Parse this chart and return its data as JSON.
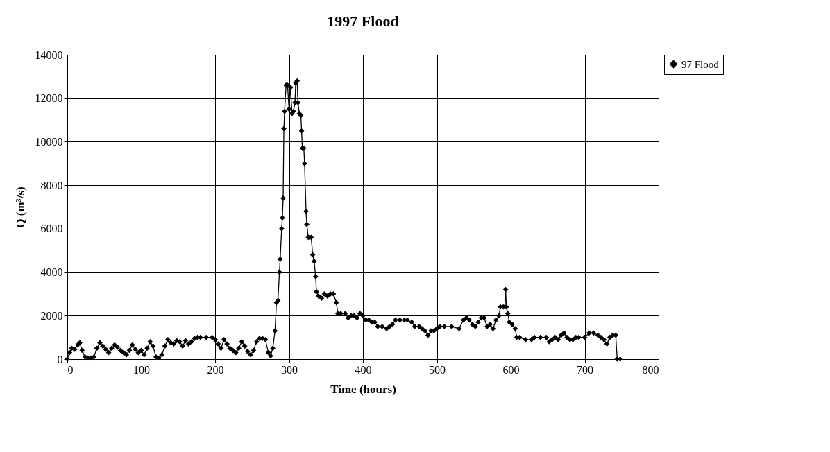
{
  "chart_data": {
    "type": "line",
    "title": "1997 Flood",
    "xlabel": "Time (hours)",
    "ylabel": "Q (m³/s)",
    "xlim": [
      0,
      800
    ],
    "xticks": [
      0,
      100,
      200,
      300,
      400,
      500,
      600,
      700,
      800
    ],
    "ylim": [
      0,
      14000
    ],
    "yticks": [
      0,
      2000,
      4000,
      6000,
      8000,
      10000,
      12000,
      14000
    ],
    "grid": true,
    "legend": "right",
    "marker": "diamond",
    "line_style": "solid",
    "x": [
      0,
      3,
      6,
      10,
      14,
      17,
      20,
      24,
      28,
      32,
      36,
      40,
      44,
      48,
      52,
      56,
      60,
      64,
      68,
      72,
      76,
      80,
      84,
      88,
      92,
      96,
      100,
      104,
      108,
      112,
      116,
      120,
      124,
      128,
      132,
      136,
      140,
      144,
      148,
      152,
      156,
      160,
      164,
      168,
      172,
      176,
      180,
      188,
      196,
      200,
      204,
      208,
      212,
      216,
      220,
      224,
      228,
      232,
      236,
      240,
      244,
      248,
      252,
      256,
      260,
      264,
      268,
      272,
      275,
      278,
      281,
      283,
      285,
      287,
      288,
      290,
      291,
      292,
      293,
      294,
      296,
      298,
      300,
      302,
      304,
      306,
      308,
      309,
      311,
      312,
      314,
      316,
      317,
      318,
      320,
      321,
      323,
      324,
      326,
      328,
      330,
      332,
      334,
      336,
      337,
      340,
      344,
      348,
      352,
      356,
      360,
      364,
      366,
      370,
      376,
      380,
      384,
      388,
      392,
      396,
      400,
      404,
      408,
      412,
      416,
      420,
      426,
      432,
      436,
      440,
      444,
      450,
      456,
      460,
      466,
      470,
      476,
      480,
      484,
      488,
      492,
      496,
      500,
      504,
      510,
      520,
      530,
      536,
      540,
      544,
      548,
      552,
      556,
      560,
      564,
      568,
      572,
      576,
      580,
      584,
      586,
      590,
      592,
      593,
      594,
      596,
      598,
      602,
      606,
      608,
      612,
      620,
      628,
      632,
      640,
      648,
      652,
      656,
      660,
      664,
      668,
      672,
      676,
      680,
      684,
      688,
      692,
      700,
      706,
      712,
      718,
      722,
      726,
      730,
      734,
      738,
      742,
      744,
      748
    ],
    "series": [
      {
        "name": "97 Flood",
        "color": "#000000",
        "values": [
          0,
          300,
          500,
          450,
          650,
          750,
          400,
          100,
          50,
          50,
          100,
          500,
          750,
          600,
          450,
          300,
          500,
          650,
          550,
          400,
          300,
          200,
          400,
          650,
          450,
          300,
          400,
          200,
          500,
          800,
          600,
          100,
          50,
          200,
          600,
          900,
          750,
          700,
          850,
          800,
          600,
          850,
          700,
          800,
          950,
          1000,
          1000,
          1000,
          1000,
          900,
          700,
          500,
          900,
          700,
          500,
          400,
          300,
          500,
          800,
          600,
          350,
          200,
          400,
          800,
          950,
          950,
          900,
          300,
          150,
          500,
          1300,
          2600,
          2700,
          4000,
          4600,
          6000,
          6500,
          7400,
          10600,
          11400,
          12600,
          12600,
          11500,
          12500,
          11300,
          11400,
          11800,
          12700,
          12800,
          11800,
          11300,
          11200,
          10500,
          9700,
          9700,
          9000,
          6800,
          6200,
          5600,
          5600,
          5600,
          4800,
          4500,
          3800,
          3100,
          2900,
          2800,
          3000,
          2900,
          3000,
          3000,
          2600,
          2100,
          2100,
          2100,
          1900,
          2000,
          2000,
          1900,
          2100,
          2000,
          1800,
          1800,
          1700,
          1700,
          1500,
          1500,
          1400,
          1500,
          1600,
          1800,
          1800,
          1800,
          1800,
          1700,
          1500,
          1500,
          1400,
          1300,
          1100,
          1300,
          1300,
          1400,
          1500,
          1500,
          1500,
          1400,
          1800,
          1900,
          1800,
          1600,
          1500,
          1700,
          1900,
          1900,
          1500,
          1600,
          1400,
          1800,
          2000,
          2400,
          2400,
          2400,
          3200,
          2400,
          2100,
          1700,
          1600,
          1400,
          1000,
          1000,
          900,
          900,
          1000,
          1000,
          1000,
          800,
          900,
          1000,
          900,
          1100,
          1200,
          1000,
          900,
          900,
          1000,
          1000,
          1000,
          1200,
          1200,
          1100,
          1000,
          900,
          700,
          1000,
          1100,
          1100,
          0,
          0
        ]
      }
    ]
  }
}
